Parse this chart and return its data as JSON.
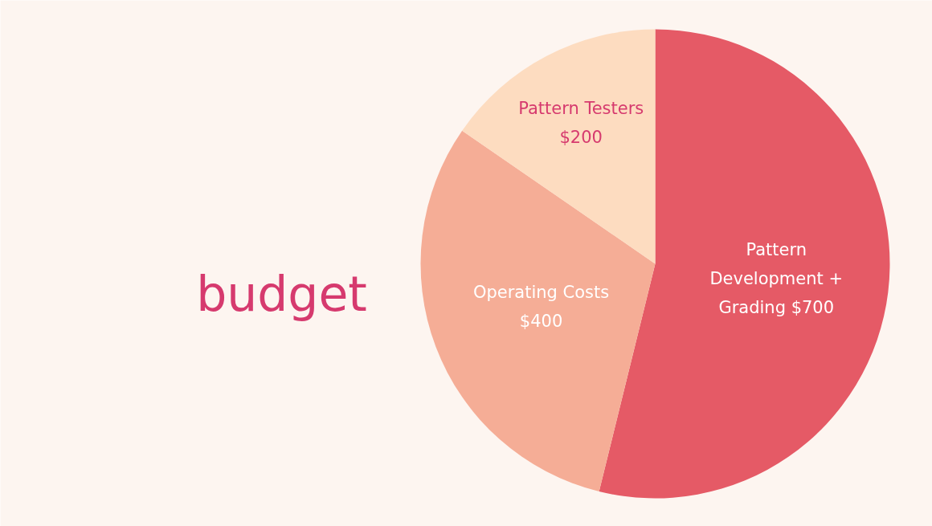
{
  "chart_data": {
    "type": "pie",
    "title": "budget",
    "categories": [
      "Pattern Development + Grading",
      "Operating Costs",
      "Pattern Testers"
    ],
    "values": [
      700,
      400,
      200
    ],
    "value_labels": [
      "$700",
      "$400",
      "$200"
    ],
    "colors": [
      "#e55a66",
      "#f5ad96",
      "#fddcc0"
    ]
  }
}
